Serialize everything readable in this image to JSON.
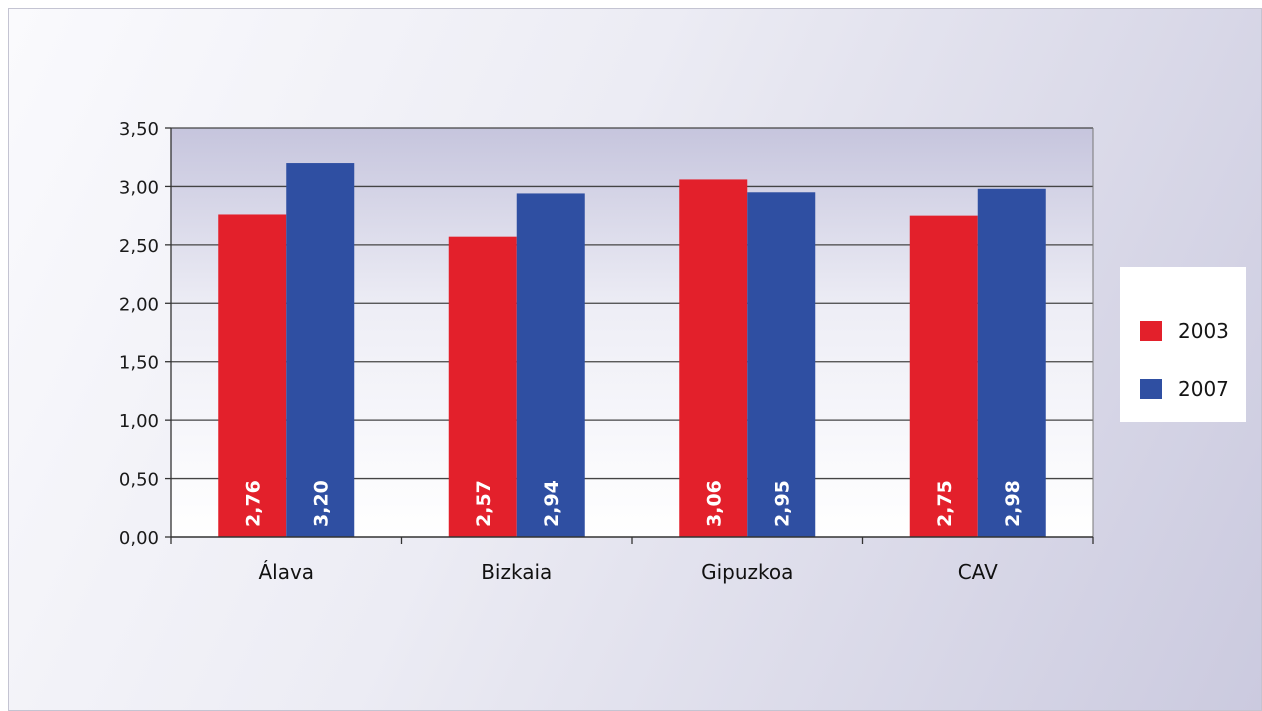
{
  "chart_data": {
    "type": "bar",
    "categories": [
      "Álava",
      "Bizkaia",
      "Gipuzkoa",
      "CAV"
    ],
    "series": [
      {
        "name": "2003",
        "values": [
          2.76,
          2.57,
          3.06,
          2.75
        ],
        "labels": [
          "2,76",
          "2,57",
          "3,06",
          "2,75"
        ],
        "color": "#e3202b"
      },
      {
        "name": "2007",
        "values": [
          3.2,
          2.94,
          2.95,
          2.98
        ],
        "labels": [
          "3,20",
          "2,94",
          "2,95",
          "2,98"
        ],
        "color": "#2f4fa2"
      }
    ],
    "y_ticks": [
      0,
      0.5,
      1,
      1.5,
      2,
      2.5,
      3,
      3.5
    ],
    "y_tick_labels": [
      "0,00",
      "0,50",
      "1,00",
      "1,50",
      "2,00",
      "2,50",
      "3,00",
      "3,50"
    ],
    "ylim": [
      0,
      3.5
    ],
    "grid": true,
    "legend_position": "right",
    "title": "",
    "xlabel": "",
    "ylabel": ""
  }
}
